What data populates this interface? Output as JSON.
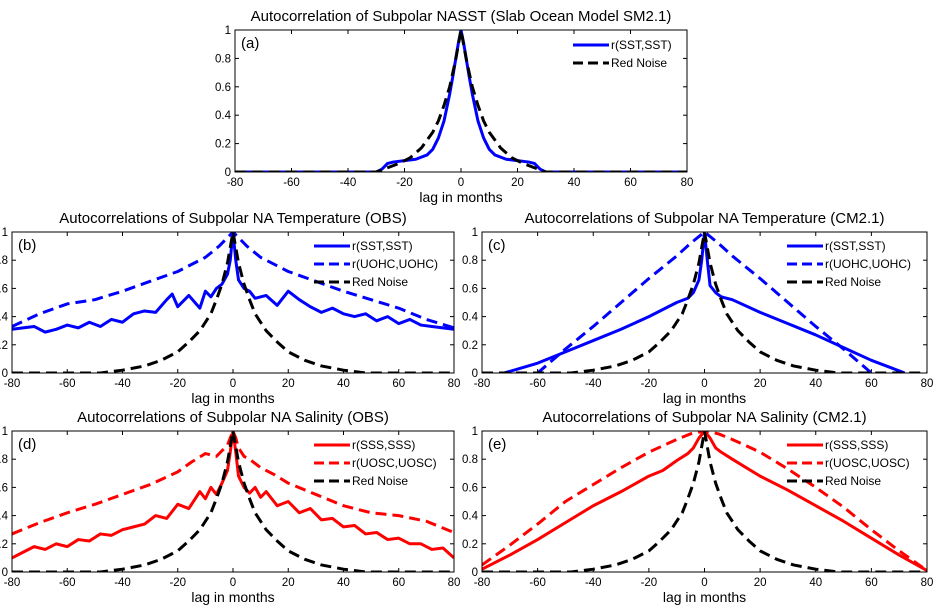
{
  "chart_data": [
    {
      "panel": "(a)",
      "type": "line",
      "title": "Autocorrelation of Subpolar NASST (Slab Ocean Model SM2.1)",
      "xlabel": "lag in months",
      "ylabel": "",
      "xlim": [
        -80,
        80
      ],
      "ylim": [
        0,
        1
      ],
      "xticks": [
        -80,
        -60,
        -40,
        -20,
        0,
        20,
        40,
        60,
        80
      ],
      "yticks": [
        0,
        0.2,
        0.4,
        0.6,
        0.8,
        1
      ],
      "ytick_labels": [
        "0",
        "0.2",
        "0.4",
        "0.6",
        "0.8",
        "1"
      ],
      "grid": false,
      "legend_position": "top-right",
      "series": [
        {
          "name": "r(SST,SST)",
          "color": "#0000ff",
          "style": "solid",
          "x": [
            -80,
            -30,
            -28,
            -26,
            -24,
            -20,
            -16,
            -12,
            -10,
            -8,
            -6,
            -4,
            -3,
            -2,
            -1,
            0,
            1,
            2,
            3,
            4,
            6,
            8,
            10,
            12,
            16,
            20,
            24,
            26,
            28,
            30,
            80
          ],
          "y": [
            0,
            0,
            0.02,
            0.06,
            0.07,
            0.08,
            0.09,
            0.12,
            0.16,
            0.24,
            0.36,
            0.55,
            0.66,
            0.78,
            0.9,
            1,
            0.9,
            0.78,
            0.66,
            0.55,
            0.36,
            0.24,
            0.16,
            0.12,
            0.09,
            0.08,
            0.07,
            0.06,
            0.02,
            0,
            0
          ]
        },
        {
          "name": "Red Noise",
          "color": "#000000",
          "style": "dashed",
          "x": [
            -80,
            -30,
            -26,
            -22,
            -18,
            -14,
            -10,
            -8,
            -6,
            -4,
            -2,
            0,
            2,
            4,
            6,
            8,
            10,
            14,
            18,
            22,
            26,
            30,
            80
          ],
          "y": [
            0,
            0,
            0.03,
            0.06,
            0.1,
            0.17,
            0.28,
            0.36,
            0.47,
            0.6,
            0.78,
            1,
            0.78,
            0.6,
            0.47,
            0.36,
            0.28,
            0.17,
            0.1,
            0.06,
            0.03,
            0,
            0
          ]
        }
      ]
    },
    {
      "panel": "(b)",
      "type": "line",
      "title": "Autocorrelations of Subpolar NA Temperature (OBS)",
      "xlabel": "lag in months",
      "ylabel": "",
      "xlim": [
        -80,
        80
      ],
      "ylim": [
        0,
        1
      ],
      "xticks": [
        -80,
        -60,
        -40,
        -20,
        0,
        20,
        40,
        60,
        80
      ],
      "yticks": [
        0,
        0.2,
        0.4,
        0.6,
        0.8,
        1
      ],
      "ytick_labels": [
        "0",
        "0.2",
        "0.4",
        "0.6",
        "0.8",
        "1"
      ],
      "grid": false,
      "legend_position": "top-right",
      "series": [
        {
          "name": "r(SST,SST)",
          "color": "#0000ff",
          "style": "solid",
          "x": [
            -80,
            -76,
            -72,
            -68,
            -64,
            -60,
            -56,
            -52,
            -48,
            -44,
            -40,
            -36,
            -32,
            -28,
            -24,
            -22,
            -20,
            -16,
            -12,
            -10,
            -8,
            -6,
            -4,
            -2,
            -1,
            0,
            1,
            2,
            4,
            6,
            8,
            12,
            16,
            20,
            22,
            24,
            28,
            32,
            36,
            40,
            44,
            48,
            52,
            56,
            60,
            64,
            68,
            72,
            76,
            80
          ],
          "y": [
            0.31,
            0.32,
            0.33,
            0.29,
            0.31,
            0.34,
            0.32,
            0.36,
            0.33,
            0.38,
            0.36,
            0.42,
            0.44,
            0.43,
            0.52,
            0.56,
            0.47,
            0.55,
            0.46,
            0.58,
            0.54,
            0.6,
            0.63,
            0.7,
            0.8,
            1,
            0.8,
            0.66,
            0.6,
            0.58,
            0.53,
            0.55,
            0.48,
            0.58,
            0.55,
            0.52,
            0.47,
            0.43,
            0.46,
            0.42,
            0.4,
            0.42,
            0.37,
            0.4,
            0.35,
            0.38,
            0.34,
            0.33,
            0.32,
            0.31
          ]
        },
        {
          "name": "r(UOHC,UOHC)",
          "color": "#0000ff",
          "style": "dashed",
          "x": [
            -80,
            -70,
            -60,
            -50,
            -40,
            -30,
            -20,
            -10,
            -5,
            0,
            5,
            10,
            20,
            30,
            40,
            50,
            60,
            70,
            80
          ],
          "y": [
            0.33,
            0.42,
            0.49,
            0.52,
            0.58,
            0.65,
            0.72,
            0.82,
            0.9,
            1,
            0.9,
            0.82,
            0.72,
            0.65,
            0.58,
            0.52,
            0.46,
            0.38,
            0.32
          ]
        },
        {
          "name": "Red Noise",
          "color": "#000000",
          "style": "dashed",
          "x": [
            -80,
            -48,
            -40,
            -32,
            -26,
            -20,
            -16,
            -12,
            -8,
            -6,
            -4,
            -2,
            0,
            2,
            4,
            6,
            8,
            12,
            16,
            20,
            26,
            32,
            40,
            48,
            80
          ],
          "y": [
            0,
            0,
            0.02,
            0.05,
            0.09,
            0.15,
            0.22,
            0.3,
            0.42,
            0.52,
            0.63,
            0.78,
            1,
            0.78,
            0.63,
            0.52,
            0.42,
            0.3,
            0.22,
            0.15,
            0.09,
            0.05,
            0.02,
            0,
            0
          ]
        }
      ]
    },
    {
      "panel": "(c)",
      "type": "line",
      "title": "Autocorrelations of Subpolar NA Temperature (CM2.1)",
      "xlabel": "lag in months",
      "ylabel": "",
      "xlim": [
        -80,
        80
      ],
      "ylim": [
        0,
        1
      ],
      "xticks": [
        -80,
        -60,
        -40,
        -20,
        0,
        20,
        40,
        60,
        80
      ],
      "yticks": [
        0,
        0.2,
        0.4,
        0.6,
        0.8,
        1
      ],
      "ytick_labels": [
        "0",
        "0.2",
        "0.4",
        "0.6",
        "0.8",
        "1"
      ],
      "grid": false,
      "legend_position": "top-right",
      "series": [
        {
          "name": "r(SST,SST)",
          "color": "#0000ff",
          "style": "solid",
          "x": [
            -72,
            -60,
            -50,
            -40,
            -30,
            -20,
            -10,
            -6,
            -4,
            -2,
            -1,
            0,
            1,
            2,
            4,
            6,
            10,
            20,
            30,
            40,
            50,
            60,
            72
          ],
          "y": [
            0,
            0.07,
            0.15,
            0.23,
            0.31,
            0.4,
            0.5,
            0.53,
            0.57,
            0.66,
            0.8,
            1,
            0.8,
            0.62,
            0.57,
            0.54,
            0.52,
            0.43,
            0.35,
            0.27,
            0.18,
            0.09,
            0
          ]
        },
        {
          "name": "r(UOHC,UOHC)",
          "color": "#0000ff",
          "style": "dashed",
          "x": [
            -60,
            -50,
            -40,
            -30,
            -20,
            -10,
            -5,
            0,
            5,
            10,
            20,
            30,
            40,
            50,
            60
          ],
          "y": [
            0,
            0.17,
            0.33,
            0.5,
            0.67,
            0.83,
            0.92,
            1,
            0.92,
            0.83,
            0.67,
            0.5,
            0.33,
            0.17,
            0
          ]
        },
        {
          "name": "Red Noise",
          "color": "#000000",
          "style": "dashed",
          "x": [
            -80,
            -48,
            -40,
            -32,
            -26,
            -20,
            -16,
            -12,
            -8,
            -6,
            -4,
            -2,
            0,
            2,
            4,
            6,
            8,
            12,
            16,
            20,
            26,
            32,
            40,
            48,
            80
          ],
          "y": [
            0,
            0,
            0.02,
            0.05,
            0.09,
            0.15,
            0.22,
            0.3,
            0.42,
            0.52,
            0.63,
            0.78,
            1,
            0.78,
            0.63,
            0.52,
            0.42,
            0.3,
            0.22,
            0.15,
            0.09,
            0.05,
            0.02,
            0,
            0
          ]
        }
      ]
    },
    {
      "panel": "(d)",
      "type": "line",
      "title": "Autocorrelations of Subpolar NA Salinity (OBS)",
      "xlabel": "lag in months",
      "ylabel": "",
      "xlim": [
        -80,
        80
      ],
      "ylim": [
        0,
        1
      ],
      "xticks": [
        -80,
        -60,
        -40,
        -20,
        0,
        20,
        40,
        60,
        80
      ],
      "yticks": [
        0,
        0.2,
        0.4,
        0.6,
        0.8,
        1
      ],
      "ytick_labels": [
        "0",
        "0.2",
        "0.4",
        "0.6",
        "0.8",
        "1"
      ],
      "grid": false,
      "legend_position": "top-right",
      "series": [
        {
          "name": "r(SSS,SSS)",
          "color": "#ff0000",
          "style": "solid",
          "x": [
            -80,
            -76,
            -72,
            -68,
            -64,
            -60,
            -56,
            -52,
            -48,
            -44,
            -40,
            -36,
            -32,
            -28,
            -24,
            -20,
            -16,
            -12,
            -10,
            -8,
            -6,
            -4,
            -2,
            -1,
            0,
            1,
            2,
            4,
            6,
            8,
            10,
            12,
            16,
            20,
            24,
            28,
            32,
            36,
            40,
            44,
            48,
            52,
            56,
            60,
            64,
            68,
            72,
            76,
            80
          ],
          "y": [
            0.1,
            0.14,
            0.18,
            0.16,
            0.2,
            0.18,
            0.23,
            0.22,
            0.27,
            0.26,
            0.3,
            0.32,
            0.34,
            0.4,
            0.38,
            0.48,
            0.45,
            0.57,
            0.52,
            0.6,
            0.55,
            0.63,
            0.72,
            0.85,
            1,
            0.85,
            0.68,
            0.6,
            0.56,
            0.6,
            0.53,
            0.57,
            0.47,
            0.5,
            0.42,
            0.45,
            0.37,
            0.38,
            0.32,
            0.33,
            0.27,
            0.28,
            0.23,
            0.24,
            0.2,
            0.2,
            0.16,
            0.17,
            0.1
          ]
        },
        {
          "name": "r(UOSC,UOSC)",
          "color": "#ff0000",
          "style": "dashed",
          "x": [
            -80,
            -70,
            -60,
            -50,
            -40,
            -30,
            -20,
            -15,
            -10,
            -6,
            -4,
            -2,
            -1,
            0,
            1,
            2,
            4,
            6,
            10,
            15,
            20,
            30,
            40,
            50,
            60,
            70,
            80
          ],
          "y": [
            0.27,
            0.35,
            0.42,
            0.48,
            0.55,
            0.62,
            0.71,
            0.78,
            0.84,
            0.82,
            0.86,
            0.9,
            0.95,
            1,
            0.95,
            0.88,
            0.82,
            0.8,
            0.74,
            0.69,
            0.63,
            0.55,
            0.47,
            0.42,
            0.4,
            0.36,
            0.28
          ]
        },
        {
          "name": "Red Noise",
          "color": "#000000",
          "style": "dashed",
          "x": [
            -80,
            -48,
            -40,
            -32,
            -26,
            -20,
            -16,
            -12,
            -8,
            -6,
            -4,
            -2,
            0,
            2,
            4,
            6,
            8,
            12,
            16,
            20,
            26,
            32,
            40,
            48,
            80
          ],
          "y": [
            0,
            0,
            0.02,
            0.05,
            0.09,
            0.15,
            0.22,
            0.3,
            0.42,
            0.52,
            0.63,
            0.78,
            1,
            0.78,
            0.63,
            0.52,
            0.42,
            0.3,
            0.22,
            0.15,
            0.09,
            0.05,
            0.02,
            0,
            0
          ]
        }
      ]
    },
    {
      "panel": "(e)",
      "type": "line",
      "title": "Autocorrelations of Subpolar NA Salinity (CM2.1)",
      "xlabel": "lag in months",
      "ylabel": "",
      "xlim": [
        -80,
        80
      ],
      "ylim": [
        0,
        1
      ],
      "xticks": [
        -80,
        -60,
        -40,
        -20,
        0,
        20,
        40,
        60,
        80
      ],
      "yticks": [
        0,
        0.2,
        0.4,
        0.6,
        0.8,
        1
      ],
      "ytick_labels": [
        "0",
        "0.2",
        "0.4",
        "0.6",
        "0.8",
        "1"
      ],
      "grid": false,
      "legend_position": "top-right",
      "series": [
        {
          "name": "r(SSS,SSS)",
          "color": "#ff0000",
          "style": "solid",
          "x": [
            -80,
            -70,
            -60,
            -50,
            -40,
            -30,
            -20,
            -15,
            -10,
            -6,
            -4,
            -2,
            0,
            2,
            4,
            6,
            10,
            15,
            20,
            30,
            40,
            50,
            60,
            70,
            80
          ],
          "y": [
            0.02,
            0.12,
            0.23,
            0.35,
            0.47,
            0.57,
            0.68,
            0.72,
            0.79,
            0.84,
            0.88,
            0.95,
            1,
            0.95,
            0.88,
            0.85,
            0.8,
            0.74,
            0.68,
            0.58,
            0.47,
            0.36,
            0.24,
            0.12,
            0.01
          ]
        },
        {
          "name": "r(UOSC,UOSC)",
          "color": "#ff0000",
          "style": "dashed",
          "x": [
            -80,
            -70,
            -60,
            -50,
            -40,
            -30,
            -20,
            -10,
            -5,
            0,
            5,
            10,
            20,
            30,
            40,
            50,
            60,
            70,
            80
          ],
          "y": [
            0.05,
            0.19,
            0.34,
            0.5,
            0.62,
            0.74,
            0.85,
            0.94,
            0.98,
            1,
            0.98,
            0.94,
            0.85,
            0.73,
            0.6,
            0.46,
            0.3,
            0.15,
            0.01
          ]
        },
        {
          "name": "Red Noise",
          "color": "#000000",
          "style": "dashed",
          "x": [
            -80,
            -48,
            -40,
            -32,
            -26,
            -20,
            -16,
            -12,
            -8,
            -6,
            -4,
            -2,
            0,
            2,
            4,
            6,
            8,
            12,
            16,
            20,
            26,
            32,
            40,
            48,
            80
          ],
          "y": [
            0,
            0,
            0.02,
            0.05,
            0.09,
            0.15,
            0.22,
            0.3,
            0.42,
            0.52,
            0.63,
            0.78,
            1,
            0.78,
            0.63,
            0.52,
            0.42,
            0.3,
            0.22,
            0.15,
            0.09,
            0.05,
            0.02,
            0,
            0
          ]
        }
      ]
    }
  ]
}
